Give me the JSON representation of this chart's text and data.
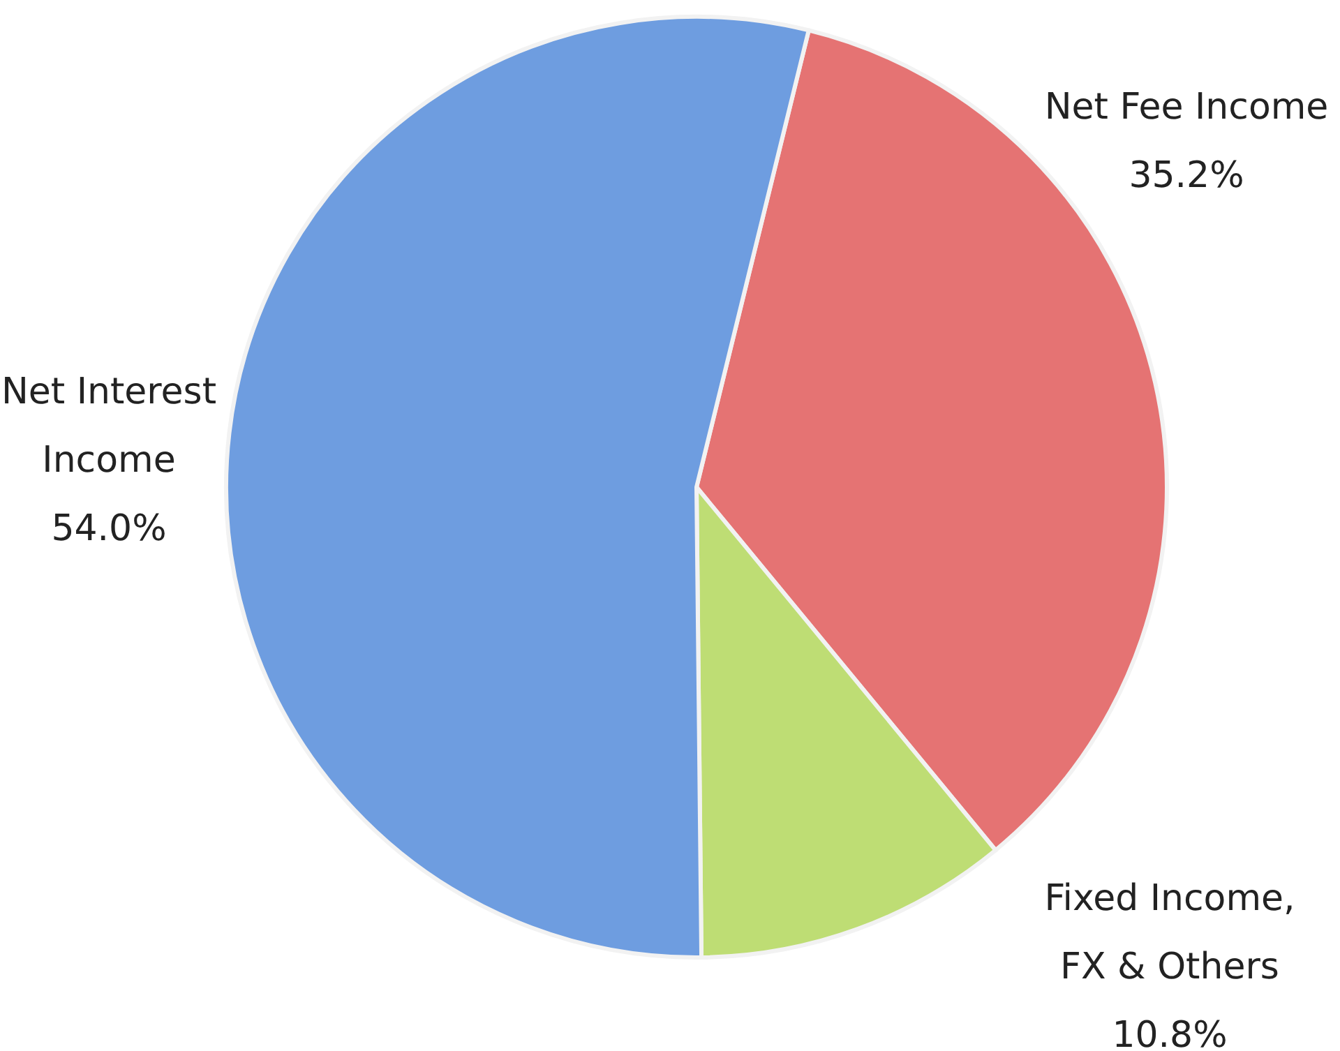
{
  "chart_data": {
    "type": "pie",
    "categories": [
      "Net Fee Income",
      "Fixed Income,\nFX & Others",
      "Net Interest\nIncome"
    ],
    "values": [
      35.2,
      10.8,
      54.0
    ],
    "value_labels": [
      "35.2%",
      "10.8%",
      "54.0%"
    ],
    "colors": [
      "#e57373",
      "#bedd74",
      "#6e9de0"
    ]
  }
}
